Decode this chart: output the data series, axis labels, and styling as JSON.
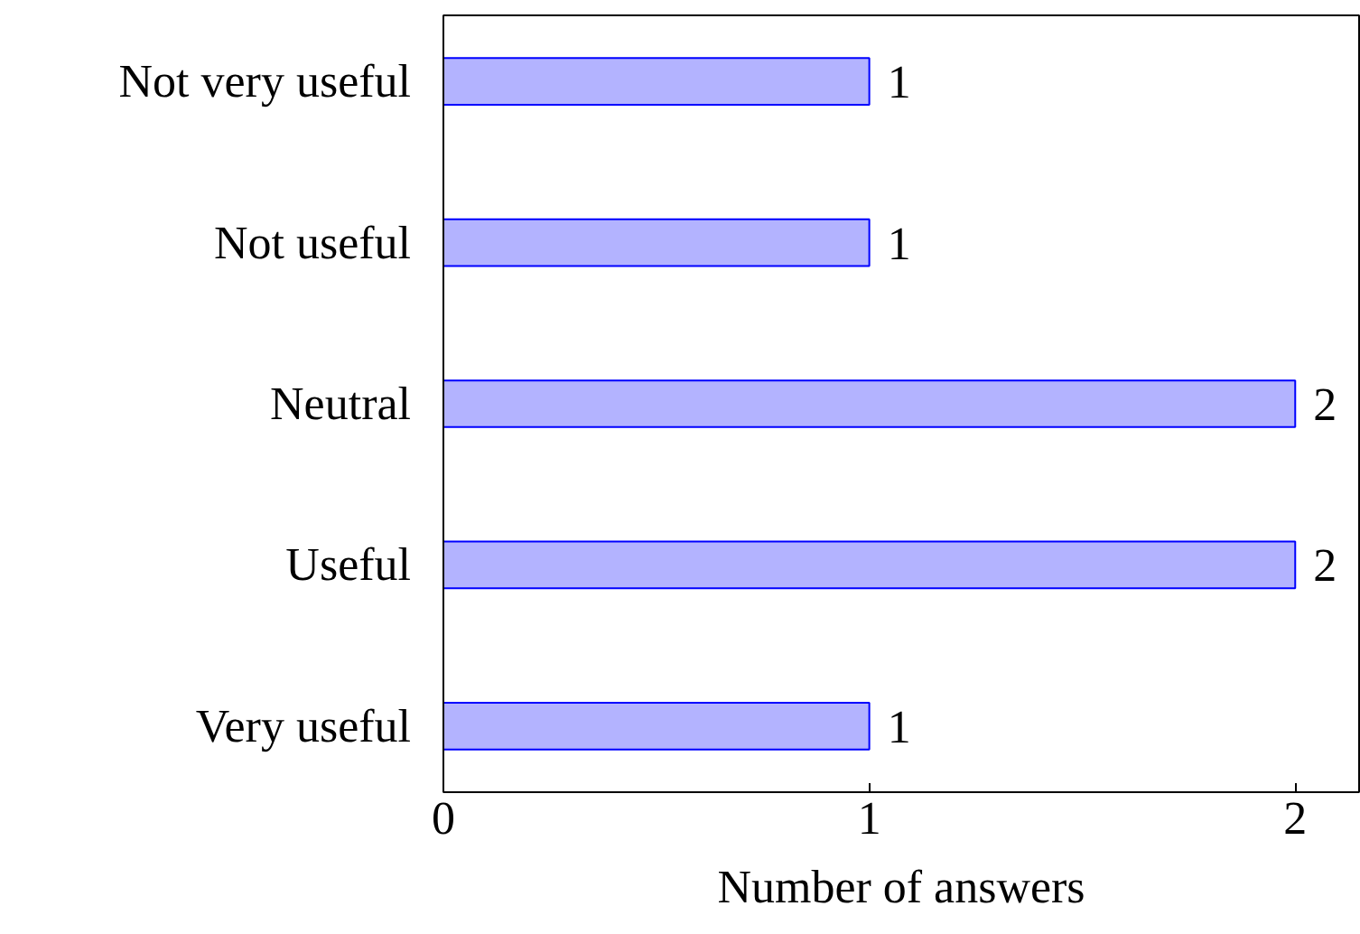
{
  "chart_data": {
    "type": "bar",
    "orientation": "horizontal",
    "categories": [
      "Not very useful",
      "Not useful",
      "Neutral",
      "Useful",
      "Very useful"
    ],
    "values": [
      1,
      1,
      2,
      2,
      1
    ],
    "color": "#b3b3ff",
    "xlabel": "Number of answers",
    "xlim": [
      0,
      2.15
    ],
    "xticks": [
      0,
      1,
      2
    ],
    "grid": false,
    "data_labels": true
  }
}
